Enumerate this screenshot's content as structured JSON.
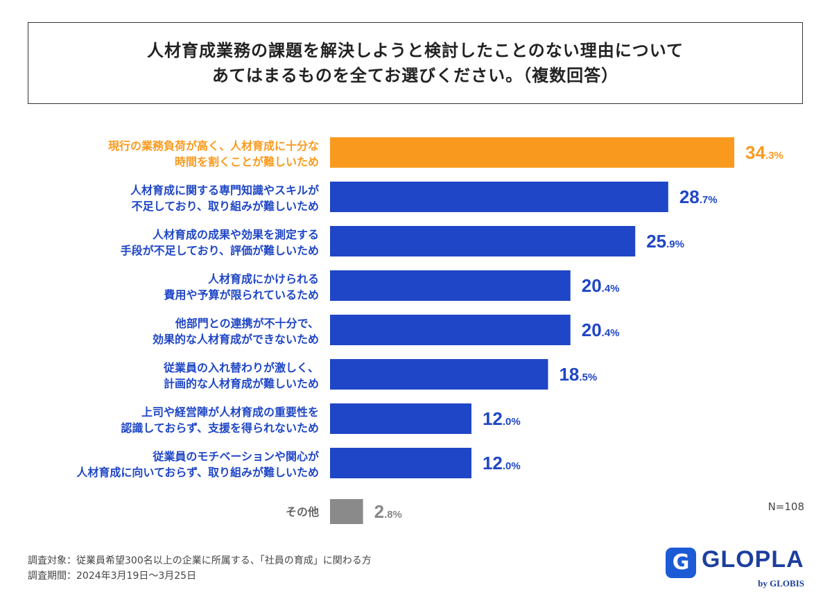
{
  "title": {
    "line1": "人材育成業務の課題を解決しようと検討したことのない理由について",
    "line2": "あてはまるものを全てお選びください。（複数回答）"
  },
  "chart_data": {
    "type": "bar",
    "orientation": "horizontal",
    "unit": "%",
    "sample_size": "N=108",
    "categories": [
      [
        "現行の業務負荷が高く、人材育成に十分な",
        "時間を割くことが難しいため"
      ],
      [
        "人材育成に関する専門知識やスキルが",
        "不足しており、取り組みが難しいため"
      ],
      [
        "人材育成の成果や効果を測定する",
        "手段が不足しており、評価が難しいため"
      ],
      [
        "人材育成にかけられる",
        "費用や予算が限られているため"
      ],
      [
        "他部門との連携が不十分で、",
        "効果的な人材育成ができないため"
      ],
      [
        "従業員の入れ替わりが激しく、",
        "計画的な人材育成が難しいため"
      ],
      [
        "上司や経営陣が人材育成の重要性を",
        "認識しておらず、支援を得られないため"
      ],
      [
        "従業員のモチベーションや関心が",
        "人材育成に向いておらず、取り組みが難しいため"
      ],
      [
        "その他"
      ]
    ],
    "values": [
      34.3,
      28.7,
      25.9,
      20.4,
      20.4,
      18.5,
      12.0,
      12.0,
      2.8
    ],
    "value_labels": [
      [
        "34",
        ".3%"
      ],
      [
        "28",
        ".7%"
      ],
      [
        "25",
        ".9%"
      ],
      [
        "20",
        ".4%"
      ],
      [
        "20",
        ".4%"
      ],
      [
        "18",
        ".5%"
      ],
      [
        "12",
        ".0%"
      ],
      [
        "12",
        ".0%"
      ],
      [
        "2",
        ".8%"
      ]
    ],
    "colors": [
      "#f99a1e",
      "#1f46c6",
      "#1f46c6",
      "#1f46c6",
      "#1f46c6",
      "#1f46c6",
      "#1f46c6",
      "#1f46c6",
      "#8a8a8a"
    ],
    "xlim": [
      0,
      34.3
    ]
  },
  "footer": {
    "line1": "調査対象：従業員希望300名以上の企業に所属する、「社員の育成」に関わる方",
    "line2": "調査期間：2024年3月19日〜3月25日"
  },
  "logo": {
    "mark": "G",
    "name": "GLOPLA",
    "by": "by GLOBIS"
  }
}
